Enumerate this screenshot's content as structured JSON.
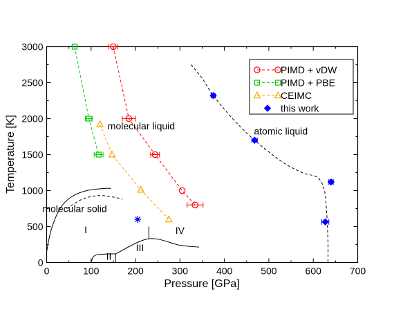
{
  "chart_data": {
    "type": "scatter",
    "title": "",
    "xlabel": "Pressure [GPa]",
    "ylabel": "Temperature [K]",
    "xlim": [
      0,
      700
    ],
    "ylim": [
      0,
      3000
    ],
    "xticks": [
      0,
      100,
      200,
      300,
      400,
      500,
      600,
      700
    ],
    "yticks": [
      0,
      500,
      1000,
      1500,
      2000,
      2500,
      3000
    ],
    "xtick_labels": [
      "0",
      "100",
      "200",
      "300",
      "400",
      "500",
      "600",
      "700"
    ],
    "ytick_labels": [
      "0",
      "500",
      "1000",
      "1500",
      "2000",
      "2500",
      "3000"
    ],
    "legend_position": "top-right",
    "series": [
      {
        "name": "PIMD + vDW",
        "color": "#ff0000",
        "marker": "circle",
        "line": "dashed",
        "points": [
          {
            "x": 150,
            "y": 3000,
            "xerr": 10
          },
          {
            "x": 185,
            "y": 2000,
            "xerr": 15
          },
          {
            "x": 244,
            "y": 1500,
            "xerr": 10
          },
          {
            "x": 305,
            "y": 1000,
            "xerr": 0
          },
          {
            "x": 334,
            "y": 800,
            "xerr": 18
          }
        ]
      },
      {
        "name": "PIMD + PBE",
        "color": "#00cc00",
        "marker": "square",
        "line": "dashed",
        "points": [
          {
            "x": 63,
            "y": 3000,
            "xerr": 0
          },
          {
            "x": 95,
            "y": 2000,
            "xerr": 8
          },
          {
            "x": 117,
            "y": 1500,
            "xerr": 10
          }
        ]
      },
      {
        "name": "CEIMC",
        "color": "#ffa500",
        "marker": "triangle",
        "line": "dashed",
        "points": [
          {
            "x": 120,
            "y": 1920
          },
          {
            "x": 147,
            "y": 1500
          },
          {
            "x": 212,
            "y": 1010
          },
          {
            "x": 275,
            "y": 600
          }
        ]
      },
      {
        "name": "this work",
        "color": "#0000ff",
        "marker": "diamond",
        "line": "none",
        "points": [
          {
            "x": 375,
            "y": 2320,
            "xerr": 5
          },
          {
            "x": 468,
            "y": 1700,
            "xerr": 6
          },
          {
            "x": 640,
            "y": 1120,
            "xerr": 5
          },
          {
            "x": 627,
            "y": 565,
            "xerr": 8
          }
        ]
      }
    ],
    "extra_markers": [
      {
        "x": 205,
        "y": 600,
        "marker": "asterisk",
        "color": "#0000ff"
      }
    ],
    "boundaries": [
      {
        "style": "solid",
        "points": [
          [
            0,
            150
          ],
          [
            10,
            450
          ],
          [
            30,
            750
          ],
          [
            55,
            910
          ],
          [
            90,
            1000
          ],
          [
            130,
            1030
          ],
          [
            145,
            1030
          ]
        ]
      },
      {
        "style": "dashed",
        "points": [
          [
            45,
            750
          ],
          [
            80,
            880
          ],
          [
            115,
            930
          ],
          [
            150,
            910
          ],
          [
            170,
            880
          ]
        ]
      },
      {
        "style": "solid",
        "points": [
          [
            100,
            0
          ],
          [
            105,
            80
          ],
          [
            115,
            110
          ],
          [
            140,
            120
          ],
          [
            155,
            120
          ]
        ]
      },
      {
        "style": "solid",
        "points": [
          [
            155,
            120
          ],
          [
            230,
            330
          ],
          [
            300,
            240
          ],
          [
            343,
            215
          ]
        ]
      },
      {
        "style": "solid",
        "points": [
          [
            230,
            330
          ],
          [
            230,
            500
          ]
        ]
      },
      {
        "style": "solid",
        "points": [
          [
            155,
            0
          ],
          [
            155,
            120
          ]
        ]
      },
      {
        "style": "dashed",
        "points": [
          [
            325,
            2750
          ],
          [
            350,
            2560
          ],
          [
            375,
            2320
          ],
          [
            420,
            1990
          ],
          [
            468,
            1700
          ],
          [
            530,
            1400
          ],
          [
            575,
            1250
          ],
          [
            610,
            1180
          ],
          [
            625,
            1000
          ],
          [
            630,
            700
          ],
          [
            633,
            300
          ],
          [
            633,
            0
          ]
        ]
      }
    ],
    "region_labels": [
      {
        "text": "molecular liquid",
        "x": 213,
        "y": 1850
      },
      {
        "text": "atomic liquid",
        "x": 527,
        "y": 1780
      },
      {
        "text": "molecular solid",
        "x": 63,
        "y": 700
      },
      {
        "text": "I",
        "x": 88,
        "y": 410
      },
      {
        "text": "II",
        "x": 140,
        "y": 40
      },
      {
        "text": "III",
        "x": 210,
        "y": 160
      },
      {
        "text": "IV",
        "x": 300,
        "y": 400
      }
    ]
  }
}
